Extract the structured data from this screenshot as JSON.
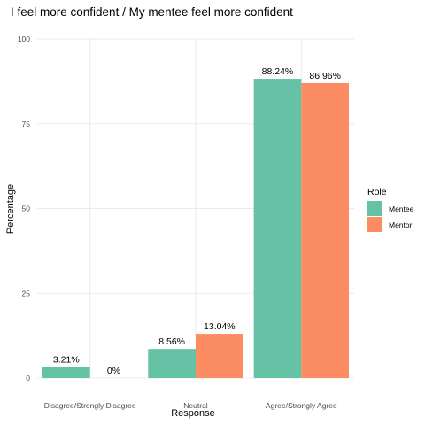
{
  "chart_data": {
    "type": "bar",
    "title": "I feel more confident / My mentee feel more confident",
    "xlabel": "Response",
    "ylabel": "Percentage",
    "categories": [
      "Disagree/Strongly Disagree",
      "Neutral",
      "Agree/Strongly Agree"
    ],
    "series": [
      {
        "name": "Mentee",
        "values": [
          3.21,
          8.56,
          88.24
        ],
        "labels": [
          "3.21%",
          "8.56%",
          "88.24%"
        ],
        "color": "#66c2a5"
      },
      {
        "name": "Mentor",
        "values": [
          0,
          13.04,
          86.96
        ],
        "labels": [
          "0%",
          "13.04%",
          "86.96%"
        ],
        "color": "#fc8d62"
      }
    ],
    "ylim": [
      0,
      100
    ],
    "yticks": [
      0,
      25,
      50,
      75,
      100
    ],
    "grid": true,
    "legend": {
      "title": "Role",
      "position": "right"
    }
  }
}
